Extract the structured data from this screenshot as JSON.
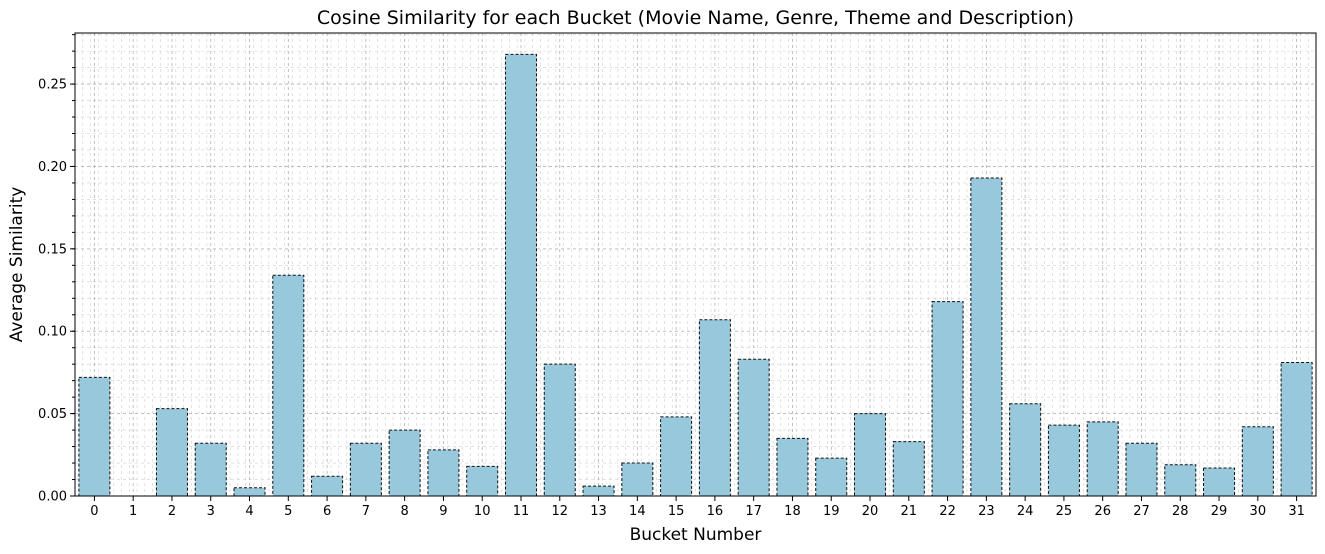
{
  "chart_data": {
    "type": "bar",
    "title": "Cosine Similarity for each Bucket (Movie Name, Genre, Theme and Description)",
    "xlabel": "Bucket Number",
    "ylabel": "Average Similarity",
    "categories": [
      "0",
      "1",
      "2",
      "3",
      "4",
      "5",
      "6",
      "7",
      "8",
      "9",
      "10",
      "11",
      "12",
      "13",
      "14",
      "15",
      "16",
      "17",
      "18",
      "19",
      "20",
      "21",
      "22",
      "23",
      "24",
      "25",
      "26",
      "27",
      "28",
      "29",
      "30",
      "31"
    ],
    "values": [
      0.072,
      0.0,
      0.053,
      0.032,
      0.005,
      0.134,
      0.012,
      0.032,
      0.04,
      0.028,
      0.018,
      0.268,
      0.08,
      0.006,
      0.02,
      0.048,
      0.107,
      0.083,
      0.035,
      0.023,
      0.05,
      0.033,
      0.118,
      0.193,
      0.056,
      0.043,
      0.045,
      0.032,
      0.019,
      0.017,
      0.042,
      0.081
    ],
    "ylim": [
      0,
      0.281
    ],
    "yticks": [
      "0.00",
      "0.05",
      "0.10",
      "0.15",
      "0.20",
      "0.25"
    ],
    "grid": "major and minor, dashed",
    "bar_color": "#97c8dc",
    "edge_color": "#111111"
  }
}
